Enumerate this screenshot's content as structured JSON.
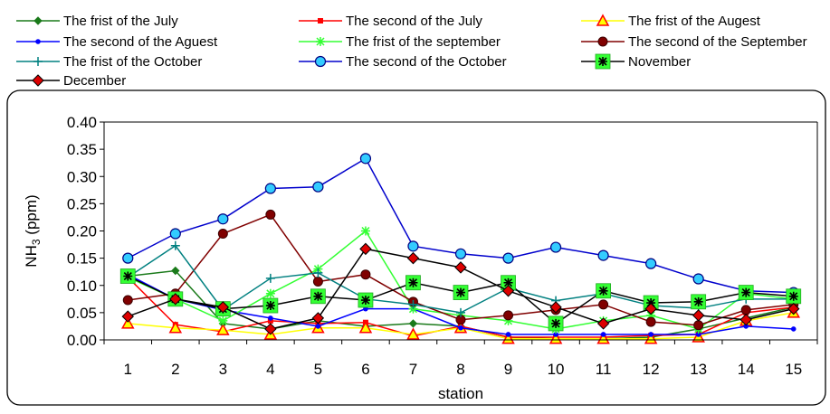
{
  "chart_data": {
    "type": "line",
    "title": "",
    "xlabel": "station",
    "ylabel": "NH3 (ppm)",
    "ylabel_main": "NH",
    "ylabel_sub": "3",
    "ylabel_unit": " (ppm)",
    "ylim": [
      0,
      0.4
    ],
    "yticks": [
      0,
      0.05,
      0.1,
      0.15,
      0.2,
      0.25,
      0.3,
      0.35,
      0.4
    ],
    "ytick_labels": [
      "0.00",
      "0.05",
      "0.10",
      "0.15",
      "0.20",
      "0.25",
      "0.30",
      "0.35",
      "0.40"
    ],
    "x": [
      1,
      2,
      3,
      4,
      5,
      6,
      7,
      8,
      9,
      10,
      11,
      12,
      13,
      14,
      15
    ],
    "x_labels": [
      "1",
      "2",
      "3",
      "4",
      "5",
      "6",
      "7",
      "8",
      "9",
      "10",
      "11",
      "12",
      "13",
      "14",
      "15"
    ],
    "grid": false,
    "legend_position": "top",
    "series": [
      {
        "name": "The frist of  the July",
        "color": "#1a7a1a",
        "marker": "diamond",
        "values": [
          0.117,
          0.127,
          0.03,
          0.02,
          0.035,
          0.025,
          0.03,
          0.025,
          0.005,
          0.002,
          0.002,
          0.005,
          0.02,
          0.04,
          0.06
        ]
      },
      {
        "name": "The second of the July",
        "color": "#ff0000",
        "marker": "square",
        "values": [
          0.115,
          0.028,
          0.015,
          0.035,
          0.03,
          0.032,
          0.007,
          0.025,
          0.005,
          0.005,
          0.005,
          0.008,
          0.01,
          0.05,
          0.06
        ]
      },
      {
        "name": "The frist of the  Augest",
        "color": "#ffff00",
        "marker": "triangle",
        "values": [
          0.03,
          0.022,
          0.018,
          0.01,
          0.022,
          0.022,
          0.01,
          0.022,
          0.002,
          0.002,
          0.002,
          0.002,
          0.005,
          0.035,
          0.05
        ]
      },
      {
        "name": "The second of the Aguest",
        "color": "#0000ff",
        "marker": "dot",
        "values": [
          0.12,
          0.075,
          0.055,
          0.04,
          0.025,
          0.057,
          0.057,
          0.022,
          0.01,
          0.01,
          0.01,
          0.01,
          0.01,
          0.025,
          0.02
        ]
      },
      {
        "name": "The frist of the september",
        "color": "#33ff33",
        "marker": "asterisk",
        "values": [
          0.115,
          0.075,
          0.035,
          0.085,
          0.13,
          0.2,
          0.057,
          0.045,
          0.035,
          0.02,
          0.035,
          0.045,
          0.02,
          0.085,
          0.075
        ]
      },
      {
        "name": "The second of the September",
        "color": "#800000",
        "marker": "circle",
        "values": [
          0.073,
          0.085,
          0.195,
          0.23,
          0.107,
          0.12,
          0.07,
          0.037,
          0.045,
          0.055,
          0.065,
          0.033,
          0.027,
          0.055,
          0.065
        ]
      },
      {
        "name": "The frist of the October",
        "color": "#008080",
        "marker": "plus",
        "values": [
          0.115,
          0.173,
          0.055,
          0.113,
          0.123,
          0.075,
          0.065,
          0.05,
          0.095,
          0.072,
          0.085,
          0.063,
          0.058,
          0.075,
          0.075
        ]
      },
      {
        "name": "The second of the October",
        "color": "#0000cc",
        "marker": "ring",
        "values": [
          0.15,
          0.195,
          0.222,
          0.278,
          0.281,
          0.333,
          0.172,
          0.158,
          0.15,
          0.17,
          0.155,
          0.14,
          0.112,
          0.09,
          0.087
        ]
      },
      {
        "name": "November",
        "color": "#000000",
        "marker": "box-asterisk",
        "values": [
          0.117,
          0.075,
          0.057,
          0.063,
          0.08,
          0.073,
          0.105,
          0.087,
          0.105,
          0.03,
          0.09,
          0.068,
          0.07,
          0.087,
          0.08
        ]
      },
      {
        "name": "December",
        "color": "#000000",
        "marker": "red-diamond",
        "values": [
          0.043,
          0.075,
          0.06,
          0.02,
          0.04,
          0.167,
          0.15,
          0.133,
          0.09,
          0.06,
          0.03,
          0.057,
          0.045,
          0.037,
          0.057
        ]
      }
    ]
  }
}
